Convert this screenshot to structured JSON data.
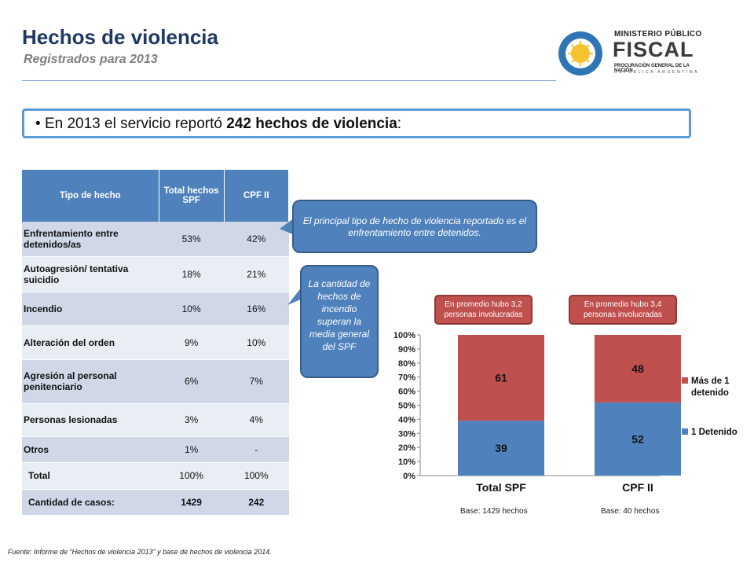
{
  "header": {
    "title": "Hechos de violencia",
    "subtitle": "Registrados para 2013"
  },
  "logo": {
    "line1": "MINISTERIO PÚBLICO",
    "line2": "FISCAL",
    "line3": "PROCURACIÓN GENERAL DE LA NACIÓN",
    "line4": "REPÚBLICA ARGENTINA"
  },
  "headline": {
    "bullet": "•",
    "prefix": "En 2013 el servicio reportó ",
    "emphasis": "242 hechos de violencia",
    "suffix": ":"
  },
  "table": {
    "headers": [
      "Tipo de hecho",
      "Total hechos SPF",
      "CPF II"
    ],
    "rows": [
      {
        "label": "Enfrentamiento entre detenidos/as",
        "total": "53%",
        "cpf": "42%"
      },
      {
        "label": "Autoagresión/ tentativa suicidio",
        "total": "18%",
        "cpf": "21%"
      },
      {
        "label": "Incendio",
        "total": "10%",
        "cpf": "16%"
      },
      {
        "label": "Alteración del orden",
        "total": "9%",
        "cpf": "10%"
      },
      {
        "label": "Agresión al personal penitenciario",
        "total": "6%",
        "cpf": "7%"
      },
      {
        "label": "Personas lesionadas",
        "total": "3%",
        "cpf": "4%"
      },
      {
        "label": "Otros",
        "total": "1%",
        "cpf": "-"
      },
      {
        "label": "Total",
        "total": "100%",
        "cpf": "100%"
      },
      {
        "label": "Cantidad de casos:",
        "total": "1429",
        "cpf": "242"
      }
    ]
  },
  "callouts": {
    "main": "El principal tipo de hecho de violencia reportado es el enfrentamiento entre detenidos.",
    "incendio": "La cantidad de hechos de incendio superan la media general del SPF"
  },
  "notes": {
    "spf": "En promedio hubo 3,2 personas involucradas",
    "cpf": "En promedio hubo 3,4 personas involucradas"
  },
  "bases": {
    "spf": "Base: 1429 hechos",
    "cpf": "Base: 40  hechos"
  },
  "source": "Fuente: Informe de “Hechos de violencia 2013” y base de hechos de violencia 2014.",
  "colors": {
    "blue": "#4f81bd",
    "red": "#c0504d"
  },
  "chart_data": {
    "type": "bar",
    "stacked": true,
    "categories": [
      "Total SPF",
      "CPF II"
    ],
    "series": [
      {
        "name": "1 Detenido",
        "values": [
          39,
          52
        ],
        "color": "#4f81bd"
      },
      {
        "name": "Más de 1 detenido",
        "values": [
          61,
          48
        ],
        "color": "#c0504d"
      }
    ],
    "yticks": [
      "0%",
      "10%",
      "20%",
      "30%",
      "40%",
      "50%",
      "60%",
      "70%",
      "80%",
      "90%",
      "100%"
    ],
    "ylim": [
      0,
      100
    ],
    "legend_position": "right",
    "legend_entries": [
      {
        "series": 1,
        "lines": [
          "Más de 1",
          "detenido"
        ]
      },
      {
        "series": 0,
        "lines": [
          "1 Detenido"
        ]
      }
    ]
  }
}
